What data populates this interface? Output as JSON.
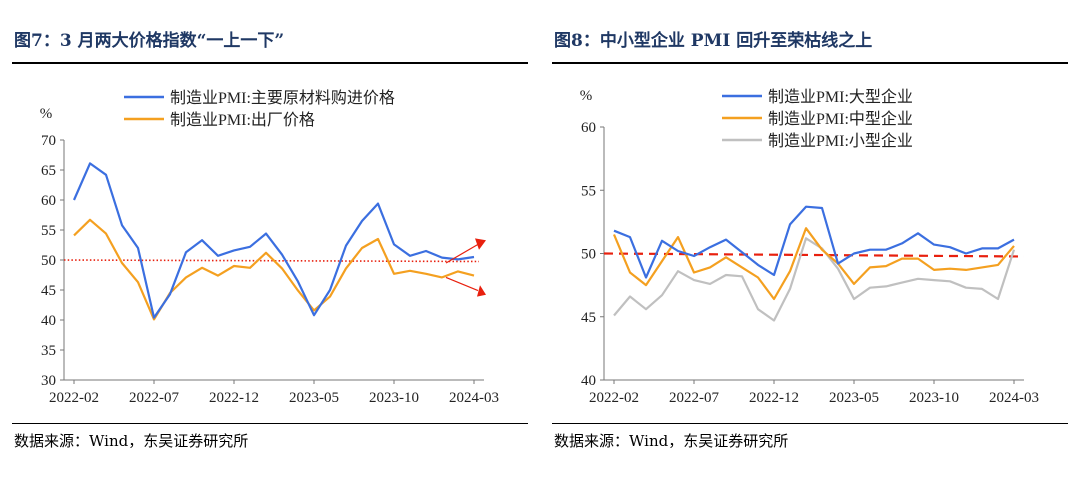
{
  "charts": [
    {
      "title": "图7：3 月两大价格指数“一上一下”",
      "source": "数据来源：Wind，东吴证券研究所"
    },
    {
      "title": "图8：中小型企业 PMI 回升至荣枯线之上",
      "source": "数据来源：Wind，东吴证券研究所"
    }
  ],
  "chart_data": [
    {
      "type": "line",
      "title": "图7：3 月两大价格指数“一上一下”",
      "ylabel": "%",
      "ylim": [
        30,
        70
      ],
      "yticks": [
        "30",
        "35",
        "40",
        "45",
        "50",
        "55",
        "60",
        "65",
        "70"
      ],
      "x_tick_labels": [
        "2022-02",
        "2022-07",
        "2022-12",
        "2023-05",
        "2023-10",
        "2024-03"
      ],
      "x": [
        "2022-02",
        "2022-03",
        "2022-04",
        "2022-05",
        "2022-06",
        "2022-07",
        "2022-08",
        "2022-09",
        "2022-10",
        "2022-11",
        "2022-12",
        "2023-01",
        "2023-02",
        "2023-03",
        "2023-04",
        "2023-05",
        "2023-06",
        "2023-07",
        "2023-08",
        "2023-09",
        "2023-10",
        "2023-11",
        "2023-12",
        "2024-01",
        "2024-02",
        "2024-03"
      ],
      "series": [
        {
          "name": "制造业PMI:主要原材料购进价格",
          "color": "#3b6fe0",
          "values": [
            60.0,
            66.1,
            64.2,
            55.8,
            52.0,
            40.4,
            44.3,
            51.3,
            53.3,
            50.7,
            51.6,
            52.2,
            54.4,
            50.9,
            46.4,
            40.8,
            45.0,
            52.4,
            56.5,
            59.4,
            52.6,
            50.7,
            51.5,
            50.4,
            50.1,
            50.5
          ]
        },
        {
          "name": "制造业PMI:出厂价格",
          "color": "#f4a020",
          "values": [
            54.1,
            56.7,
            54.4,
            49.5,
            46.3,
            40.1,
            44.5,
            47.1,
            48.7,
            47.4,
            49.0,
            48.7,
            51.2,
            48.6,
            44.9,
            41.6,
            43.9,
            48.6,
            52.0,
            53.5,
            47.7,
            48.2,
            47.7,
            47.1,
            48.1,
            47.4
          ]
        }
      ],
      "reference_line": {
        "value": 50,
        "color": "#e8200e"
      },
      "arrows": [
        "up",
        "down"
      ]
    },
    {
      "type": "line",
      "title": "图8：中小型企业 PMI 回升至荣枯线之上",
      "ylabel": "%",
      "ylim": [
        40,
        60
      ],
      "yticks": [
        "40",
        "45",
        "50",
        "55",
        "60"
      ],
      "x_tick_labels": [
        "2022-02",
        "2022-07",
        "2022-12",
        "2023-05",
        "2023-10",
        "2024-03"
      ],
      "x": [
        "2022-02",
        "2022-03",
        "2022-04",
        "2022-05",
        "2022-06",
        "2022-07",
        "2022-08",
        "2022-09",
        "2022-10",
        "2022-11",
        "2022-12",
        "2023-01",
        "2023-02",
        "2023-03",
        "2023-04",
        "2023-05",
        "2023-06",
        "2023-07",
        "2023-08",
        "2023-09",
        "2023-10",
        "2023-11",
        "2023-12",
        "2024-01",
        "2024-02",
        "2024-03"
      ],
      "series": [
        {
          "name": "制造业PMI:大型企业",
          "color": "#3b6fe0",
          "values": [
            51.8,
            51.3,
            48.1,
            51.0,
            50.2,
            49.8,
            50.5,
            51.1,
            50.1,
            49.1,
            48.3,
            52.3,
            53.7,
            53.6,
            49.2,
            50.0,
            50.3,
            50.3,
            50.8,
            51.6,
            50.7,
            50.5,
            50.0,
            50.4,
            50.4,
            51.1
          ]
        },
        {
          "name": "制造业PMI:中型企业",
          "color": "#f4a020",
          "values": [
            51.5,
            48.5,
            47.5,
            49.4,
            51.3,
            48.5,
            48.9,
            49.7,
            48.9,
            48.1,
            46.4,
            48.6,
            52.0,
            50.3,
            49.2,
            47.6,
            48.9,
            49.0,
            49.6,
            49.6,
            48.7,
            48.8,
            48.7,
            48.9,
            49.1,
            50.6
          ]
        },
        {
          "name": "制造业PMI:小型企业",
          "color": "#c0c0c0",
          "values": [
            45.1,
            46.6,
            45.6,
            46.7,
            48.6,
            47.9,
            47.6,
            48.3,
            48.2,
            45.6,
            44.7,
            47.2,
            51.2,
            50.4,
            48.8,
            46.4,
            47.3,
            47.4,
            47.7,
            48.0,
            47.9,
            47.8,
            47.3,
            47.2,
            46.4,
            50.3
          ]
        }
      ],
      "reference_line": {
        "value": 50,
        "color": "#e8200e"
      }
    }
  ]
}
